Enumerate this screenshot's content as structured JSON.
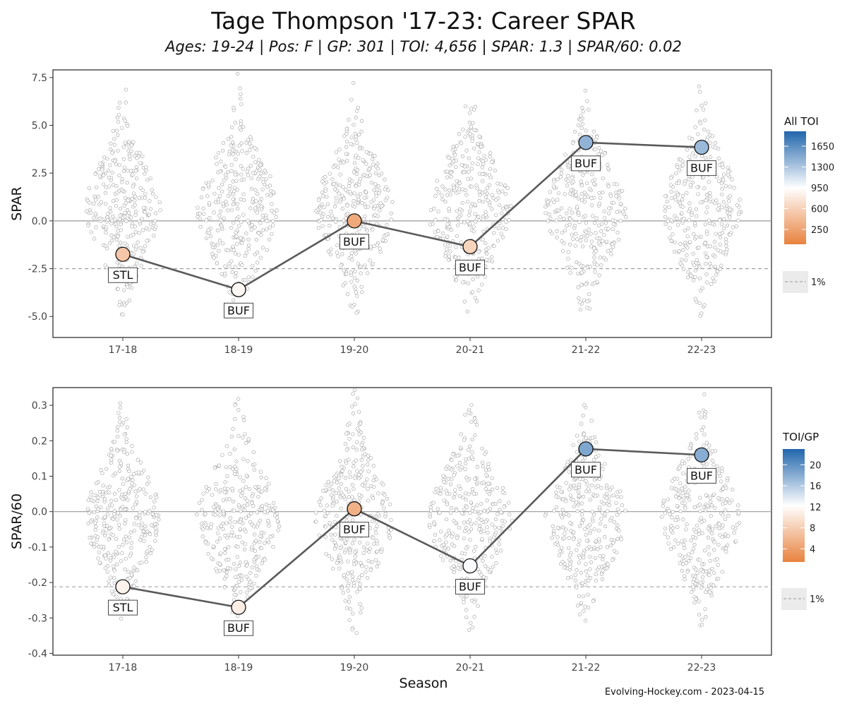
{
  "title": "Tage Thompson '17-23: Career SPAR",
  "subtitle": "Ages: 19-24 | Pos: F | GP: 301 | TOI: 4,656 | SPAR: 1.3 | SPAR/60: 0.02",
  "source": "Evolving-Hockey.com - 2023-04-15",
  "xlabel": "Season",
  "colors": {
    "low": "#e8823e",
    "mid": "#ffffff",
    "high": "#2166ac",
    "line": "#5a5a5a"
  },
  "chart_data": [
    {
      "type": "scatter",
      "ylabel": "SPAR",
      "ylim": [
        -6.1,
        7.9
      ],
      "yticks": [
        7.5,
        5.0,
        2.5,
        0.0,
        -2.5,
        -5.0
      ],
      "ytick_labels": [
        "7.5",
        "5.0",
        "2.5",
        "0.0",
        "-2.5",
        "-5.0"
      ],
      "reference_line": -2.5,
      "reference_label": "1%",
      "categories": [
        "17-18",
        "18-19",
        "19-20",
        "20-21",
        "21-22",
        "22-23"
      ],
      "series": [
        {
          "teams": [
            "STL",
            "BUF",
            "BUF",
            "BUF",
            "BUF",
            "BUF"
          ],
          "values": [
            -1.75,
            -3.6,
            0.0,
            -1.35,
            4.1,
            3.85
          ],
          "color_values": [
            520,
            900,
            300,
            620,
            1420,
            1380
          ]
        }
      ],
      "legend": {
        "title": "All TOI",
        "ticks": [
          1650,
          1300,
          950,
          600,
          250
        ],
        "range": [
          0,
          1900
        ],
        "position": "right"
      },
      "distribution": {
        "spread": [
          1.2,
          1.35,
          1.25,
          1.35,
          1.3,
          1.3
        ]
      }
    },
    {
      "type": "scatter",
      "ylabel": "SPAR/60",
      "ylim": [
        -0.405,
        0.35
      ],
      "yticks": [
        0.3,
        0.2,
        0.1,
        0.0,
        -0.1,
        -0.2,
        -0.3,
        -0.4
      ],
      "ytick_labels": [
        "0.3",
        "0.2",
        "0.1",
        "0.0",
        "-0.1",
        "-0.2",
        "-0.3",
        "-0.4"
      ],
      "reference_line": -0.212,
      "reference_label": "1%",
      "categories": [
        "17-18",
        "18-19",
        "19-20",
        "20-21",
        "21-22",
        "22-23"
      ],
      "series": [
        {
          "teams": [
            "STL",
            "BUF",
            "BUF",
            "BUF",
            "BUF",
            "BUF"
          ],
          "values": [
            -0.212,
            -0.27,
            0.008,
            -0.153,
            0.177,
            0.16
          ],
          "color_values": [
            11.2,
            10.8,
            5.5,
            12.5,
            18.5,
            18.0
          ]
        }
      ],
      "legend": {
        "title": "TOI/GP",
        "ticks": [
          20,
          16,
          12,
          8,
          4
        ],
        "range": [
          1.5,
          23
        ],
        "position": "right"
      },
      "distribution": {
        "spread": [
          1.2,
          1.35,
          1.25,
          1.35,
          1.3,
          1.3
        ]
      }
    }
  ]
}
